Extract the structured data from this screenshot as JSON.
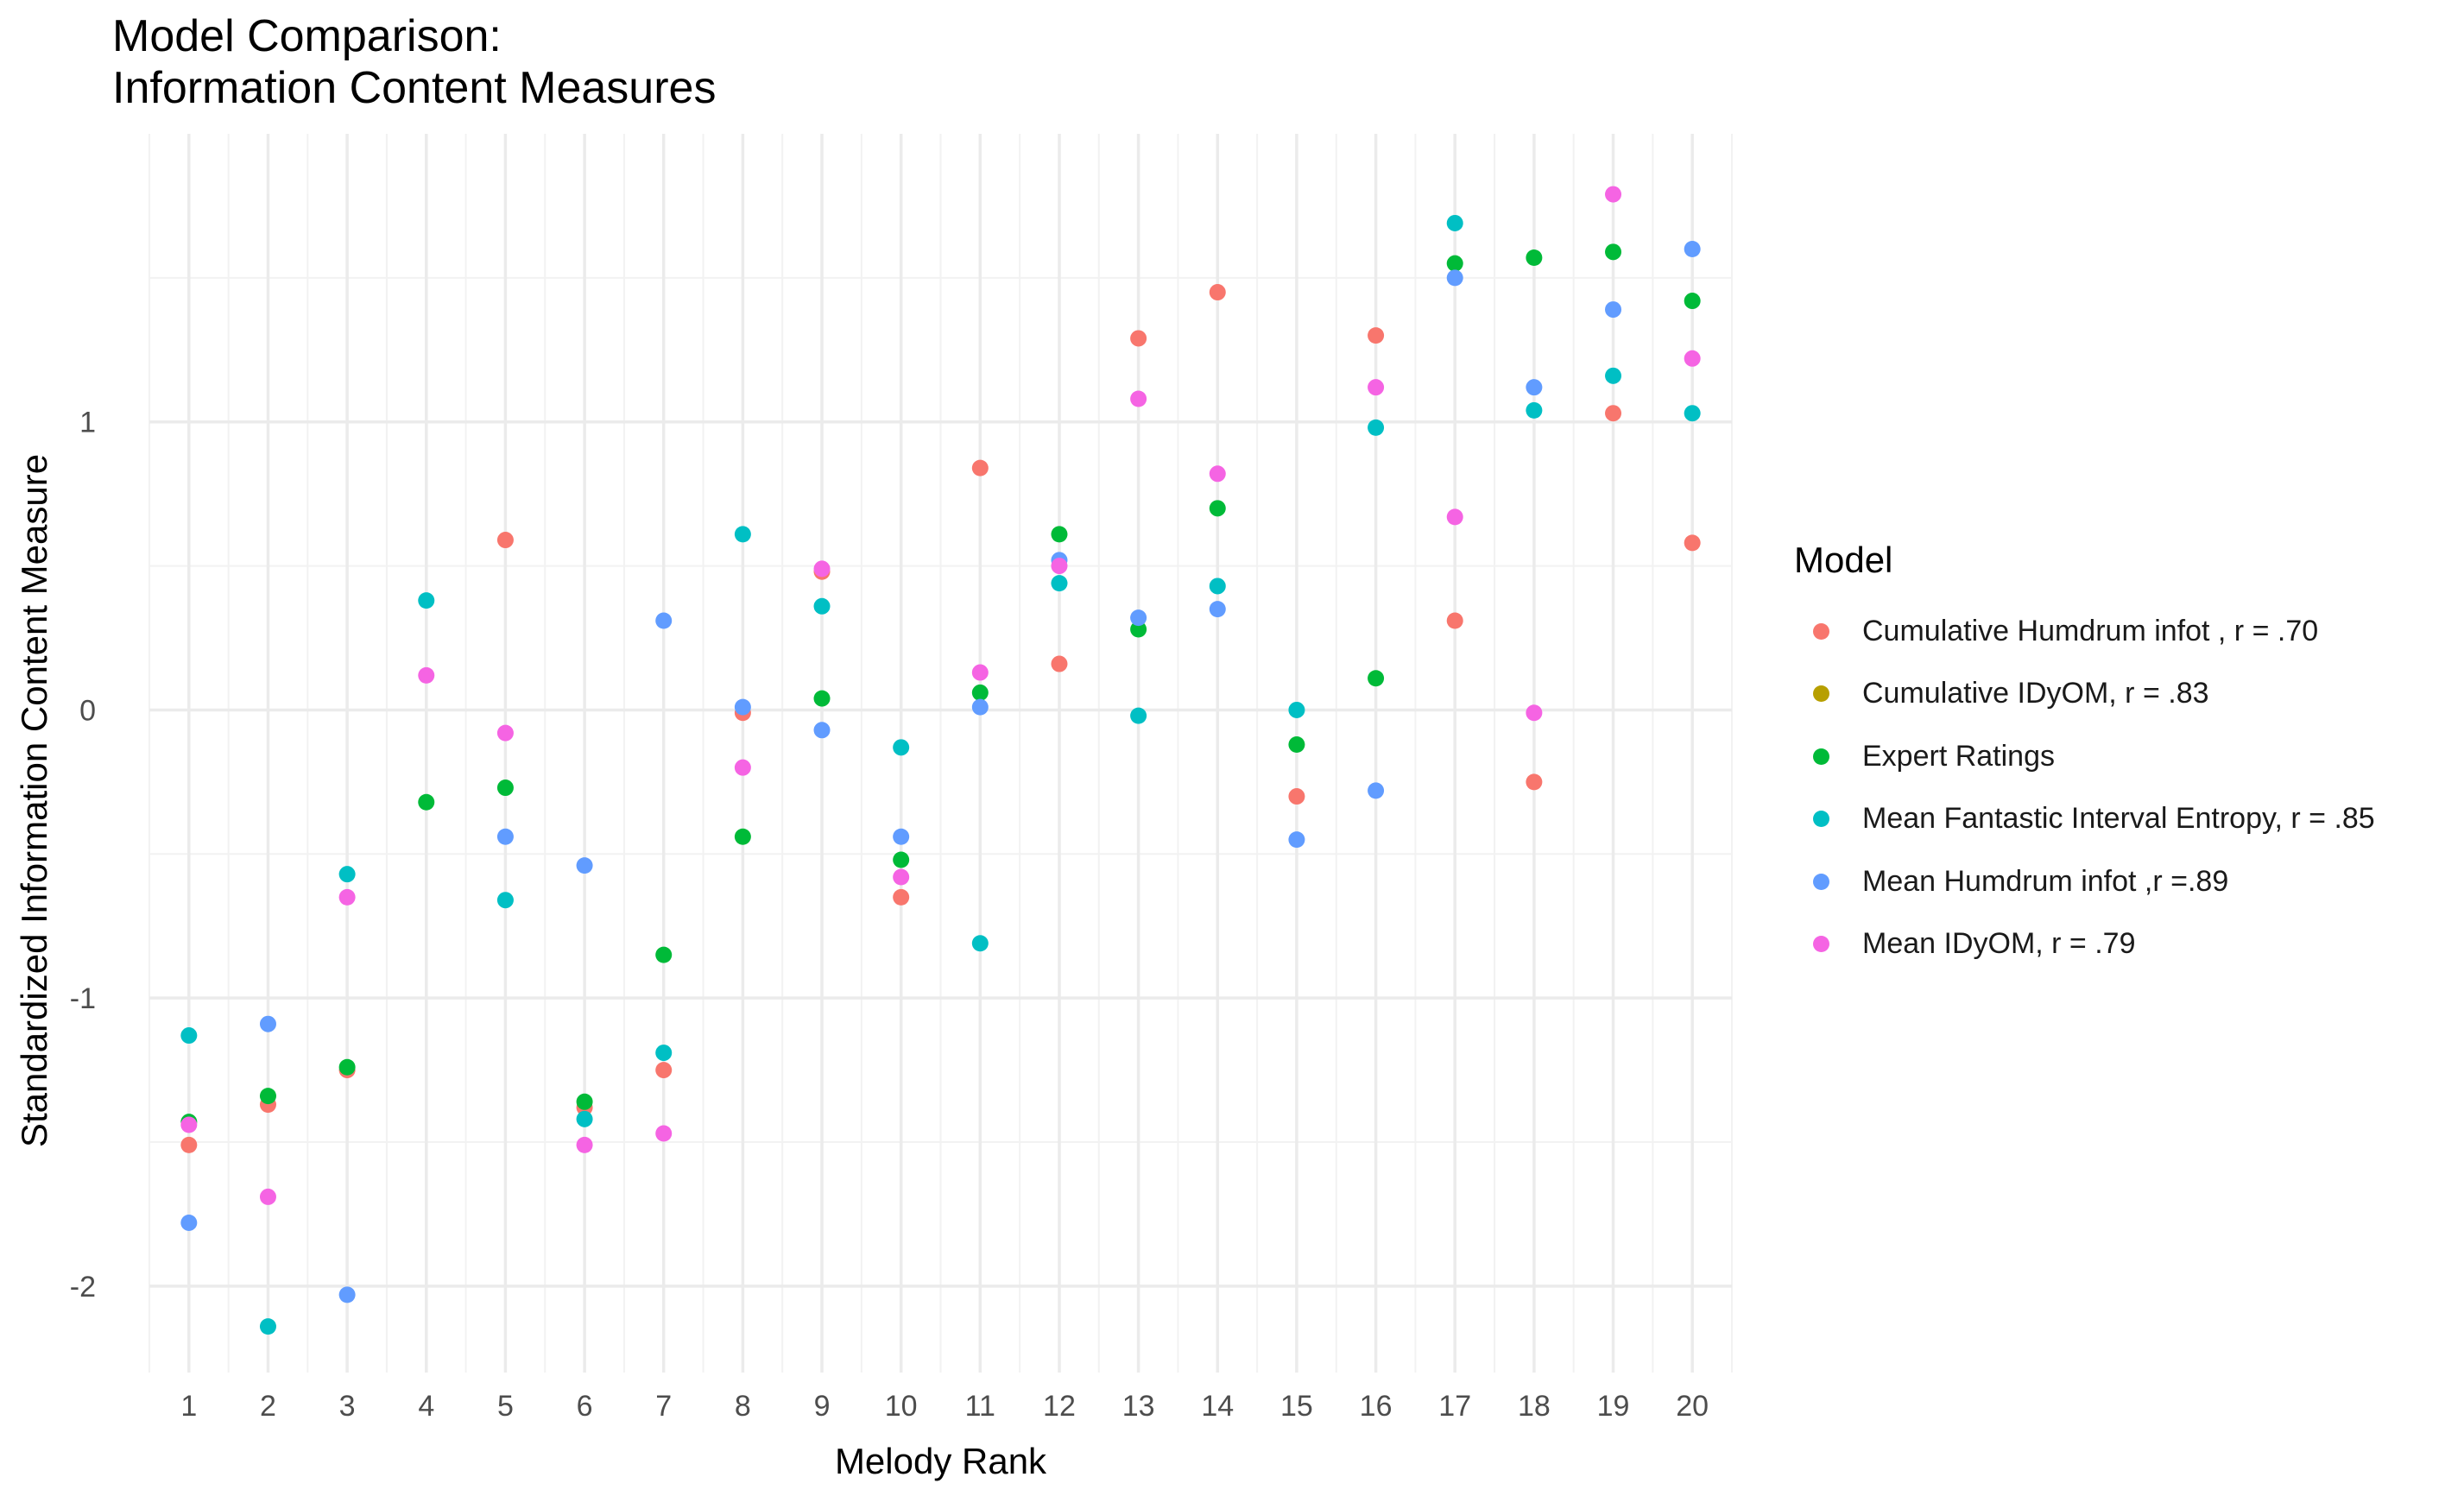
{
  "chart_data": {
    "type": "scatter",
    "title_lines": [
      "Model Comparison:",
      "Information Content Measures"
    ],
    "xlabel": "Melody Rank",
    "ylabel": "Standardized Information Content Measure",
    "x": [
      1,
      2,
      3,
      4,
      5,
      6,
      7,
      8,
      9,
      10,
      11,
      12,
      13,
      14,
      15,
      16,
      17,
      18,
      19,
      20
    ],
    "xlim": [
      0.5,
      20.5
    ],
    "ylim": [
      -2.3,
      2.0
    ],
    "y_ticks": [
      -2,
      -1,
      0,
      1
    ],
    "y_tick_labels": [
      "-2",
      "-1",
      "0",
      "1"
    ],
    "grid": true,
    "legend_title": "Model",
    "legend_position": "right",
    "series": [
      {
        "name": "Cumulative Humdrum infot , r = .70",
        "color": "#F8766D",
        "values": [
          -1.51,
          -1.37,
          -1.25,
          null,
          0.59,
          -1.38,
          -1.25,
          -0.01,
          0.48,
          -0.65,
          0.84,
          0.16,
          1.29,
          1.45,
          -0.3,
          1.3,
          0.31,
          -0.25,
          1.03,
          0.58
        ]
      },
      {
        "name": "Cumulative IDyOM, r = .83",
        "color": "#B79F00",
        "values": [
          null,
          null,
          null,
          null,
          null,
          null,
          null,
          null,
          null,
          null,
          null,
          null,
          null,
          null,
          null,
          null,
          null,
          null,
          null,
          null
        ]
      },
      {
        "name": "Expert Ratings",
        "color": "#00BA38",
        "values": [
          -1.43,
          -1.34,
          -1.24,
          -0.32,
          -0.27,
          -1.36,
          -0.85,
          -0.44,
          0.04,
          -0.52,
          0.06,
          0.61,
          0.28,
          0.7,
          -0.12,
          0.11,
          1.55,
          1.57,
          1.59,
          1.42
        ]
      },
      {
        "name": "Mean Fantastic Interval Entropy, r = .85",
        "color": "#00BFC4",
        "values": [
          -1.13,
          -2.14,
          -0.57,
          0.38,
          -0.66,
          -1.42,
          -1.19,
          0.61,
          0.36,
          -0.13,
          -0.81,
          0.44,
          -0.02,
          0.43,
          0.0,
          0.98,
          1.69,
          1.04,
          1.16,
          1.03
        ]
      },
      {
        "name": "Mean Humdrum infot ,r =.89",
        "color": "#619CFF",
        "values": [
          -1.78,
          -1.09,
          -2.03,
          null,
          -0.44,
          -0.54,
          0.31,
          0.01,
          -0.07,
          -0.44,
          0.01,
          0.52,
          0.32,
          0.35,
          -0.45,
          -0.28,
          1.5,
          1.12,
          1.39,
          1.6
        ]
      },
      {
        "name": "Mean IDyOM, r = .79",
        "color": "#F564E3",
        "values": [
          -1.44,
          -1.69,
          -0.65,
          0.12,
          -0.08,
          -1.51,
          -1.47,
          -0.2,
          0.49,
          -0.58,
          0.13,
          0.5,
          1.08,
          0.82,
          null,
          1.12,
          0.67,
          -0.01,
          1.79,
          1.22
        ]
      }
    ]
  }
}
